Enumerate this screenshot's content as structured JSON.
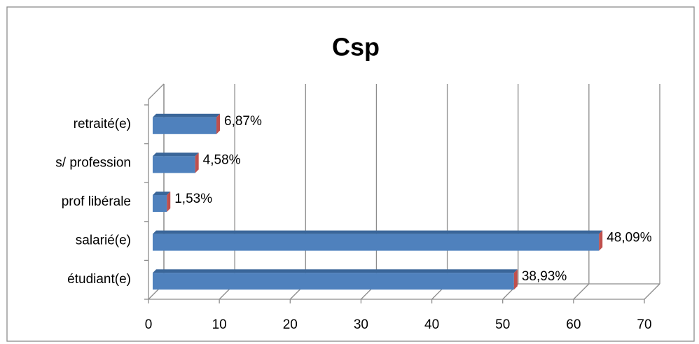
{
  "chart_data": {
    "type": "bar",
    "orientation": "horizontal",
    "title": "Csp",
    "categories": [
      "étudiant(e)",
      "salarié(e)",
      "prof libérale",
      "s/ profession",
      "retraité(e)"
    ],
    "values": [
      51,
      63,
      2,
      6,
      9
    ],
    "shares": [
      {
        "value": 38.93,
        "label": "38,93%"
      },
      {
        "value": 48.09,
        "label": "48,09%"
      },
      {
        "value": 1.53,
        "label": "1,53%"
      },
      {
        "value": 4.58,
        "label": "4,58%"
      },
      {
        "value": 6.87,
        "label": "6,87%"
      }
    ],
    "color": "#4f81bd",
    "end_color": "#c0504d",
    "xlim": [
      0,
      70
    ],
    "xticks": [
      0,
      10,
      20,
      30,
      40,
      50,
      60,
      70
    ],
    "grid": true
  }
}
